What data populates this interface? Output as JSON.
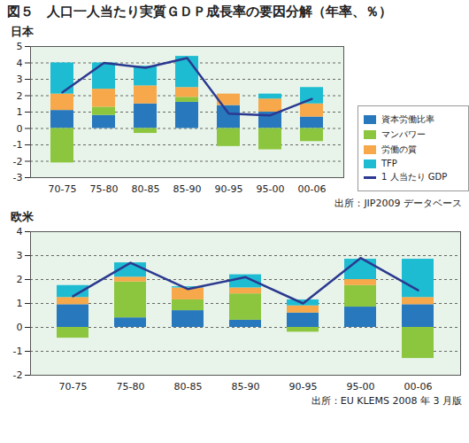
{
  "title": "図５　人口一人当たり実質ＧＤＰ成長率の要因分解（年率、％）",
  "chart_data": [
    {
      "type": "bar",
      "title": "日本",
      "source": "出所：JIP2009 データベース",
      "stacked": true,
      "grid": true,
      "legend": "right",
      "categories": [
        "70-75",
        "75-80",
        "80-85",
        "85-90",
        "90-95",
        "95-00",
        "00-06"
      ],
      "ylim": [
        -3,
        5
      ],
      "yticks": [
        -3,
        -2,
        -1,
        0,
        1,
        2,
        3,
        4,
        5
      ],
      "series": [
        {
          "name": "資本労働比率",
          "type": "bar",
          "color": "#2878be",
          "values": [
            1.1,
            0.8,
            1.5,
            1.6,
            1.4,
            1.0,
            0.7
          ]
        },
        {
          "name": "マンパワー",
          "type": "bar",
          "color": "#8cc63f",
          "values": [
            -2.1,
            0.5,
            -0.3,
            0.3,
            -1.1,
            -1.3,
            -0.8
          ]
        },
        {
          "name": "労働の質",
          "type": "bar",
          "color": "#f6a84a",
          "values": [
            1.0,
            1.1,
            1.1,
            0.6,
            0.7,
            0.8,
            0.8
          ]
        },
        {
          "name": "TFP",
          "type": "bar",
          "color": "#1ebcd2",
          "values": [
            1.9,
            1.6,
            1.2,
            1.9,
            0.0,
            0.3,
            1.0
          ]
        },
        {
          "name": "1 人当たり GDP",
          "type": "line",
          "color": "#2b3990",
          "values": [
            2.2,
            4.0,
            3.7,
            4.3,
            0.9,
            0.8,
            1.8
          ]
        }
      ]
    },
    {
      "type": "bar",
      "title": "欧米",
      "source": "出所：EU KLEMS 2008 年 3 月版",
      "stacked": true,
      "grid": true,
      "categories": [
        "70-75",
        "75-80",
        "80-85",
        "85-90",
        "90-95",
        "95-00",
        "00-06"
      ],
      "ylim": [
        -2,
        4
      ],
      "yticks": [
        -2,
        -1,
        0,
        1,
        2,
        3,
        4
      ],
      "series": [
        {
          "name": "資本労働比率",
          "type": "bar",
          "color": "#2878be",
          "values": [
            0.95,
            0.4,
            0.7,
            0.3,
            0.6,
            0.85,
            0.95
          ]
        },
        {
          "name": "マンパワー",
          "type": "bar",
          "color": "#8cc63f",
          "values": [
            -0.45,
            1.5,
            0.45,
            1.1,
            -0.2,
            0.9,
            -1.3
          ]
        },
        {
          "name": "労働の質",
          "type": "bar",
          "color": "#f6a84a",
          "values": [
            0.3,
            0.2,
            0.5,
            0.25,
            0.3,
            0.25,
            0.3
          ]
        },
        {
          "name": "TFP",
          "type": "bar",
          "color": "#1ebcd2",
          "values": [
            0.5,
            0.6,
            0.05,
            0.55,
            0.25,
            0.85,
            1.6
          ]
        },
        {
          "name": "1 人当たり GDP",
          "type": "line",
          "color": "#2b3990",
          "values": [
            1.3,
            2.7,
            1.6,
            2.1,
            1.0,
            2.9,
            1.55
          ]
        }
      ]
    }
  ]
}
